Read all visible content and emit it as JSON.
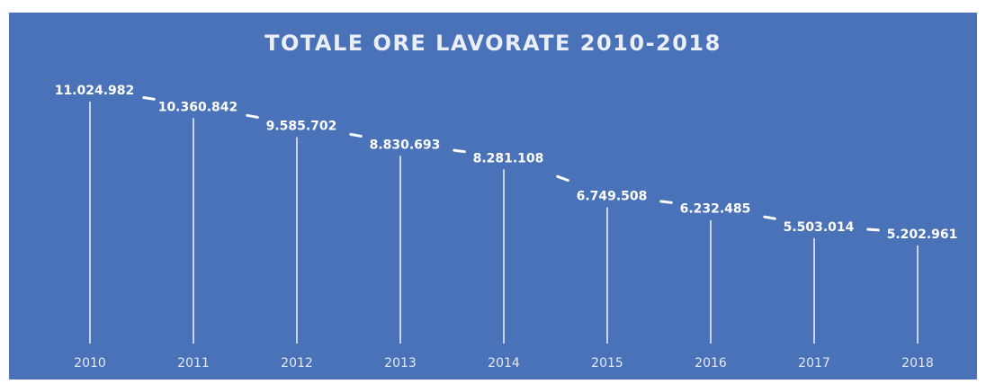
{
  "chart_data": {
    "type": "line",
    "title": "TOTALE ORE LAVORATE 2010-2018",
    "categories": [
      "2010",
      "2011",
      "2012",
      "2013",
      "2014",
      "2015",
      "2016",
      "2017",
      "2018"
    ],
    "values": [
      11024982,
      10360842,
      9585702,
      8830693,
      8281108,
      6749508,
      6232485,
      5503014,
      5202961
    ],
    "value_labels": [
      "11.024.982",
      "10.360.842",
      "9.585.702",
      "8.830.693",
      "8.281.108",
      "6.749.508",
      "6.232.485",
      "5.503.014",
      "5.202.961"
    ],
    "xlabel": "",
    "ylabel": "",
    "grid": false,
    "legend": "none",
    "colors": {
      "background": "#4a72b8",
      "line": "#ffffff",
      "drop_lines": "#e8edf6",
      "text": "#ffffff",
      "axis_text": "#e3e9f5"
    }
  }
}
